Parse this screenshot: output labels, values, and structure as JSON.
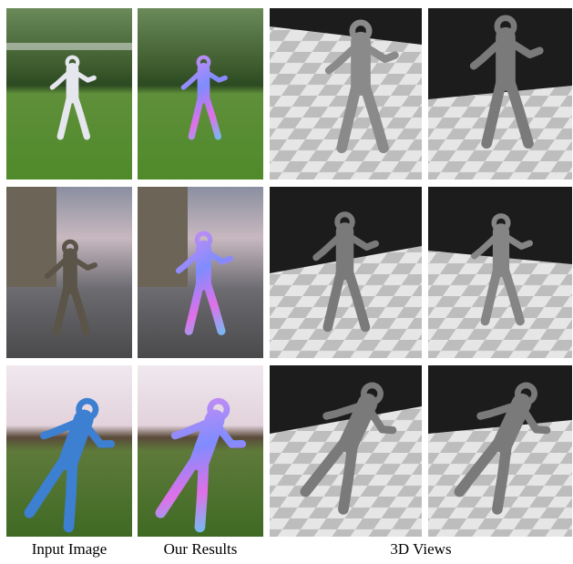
{
  "captions": {
    "input": "Input Image",
    "results": "Our Results",
    "views": "3D Views"
  }
}
